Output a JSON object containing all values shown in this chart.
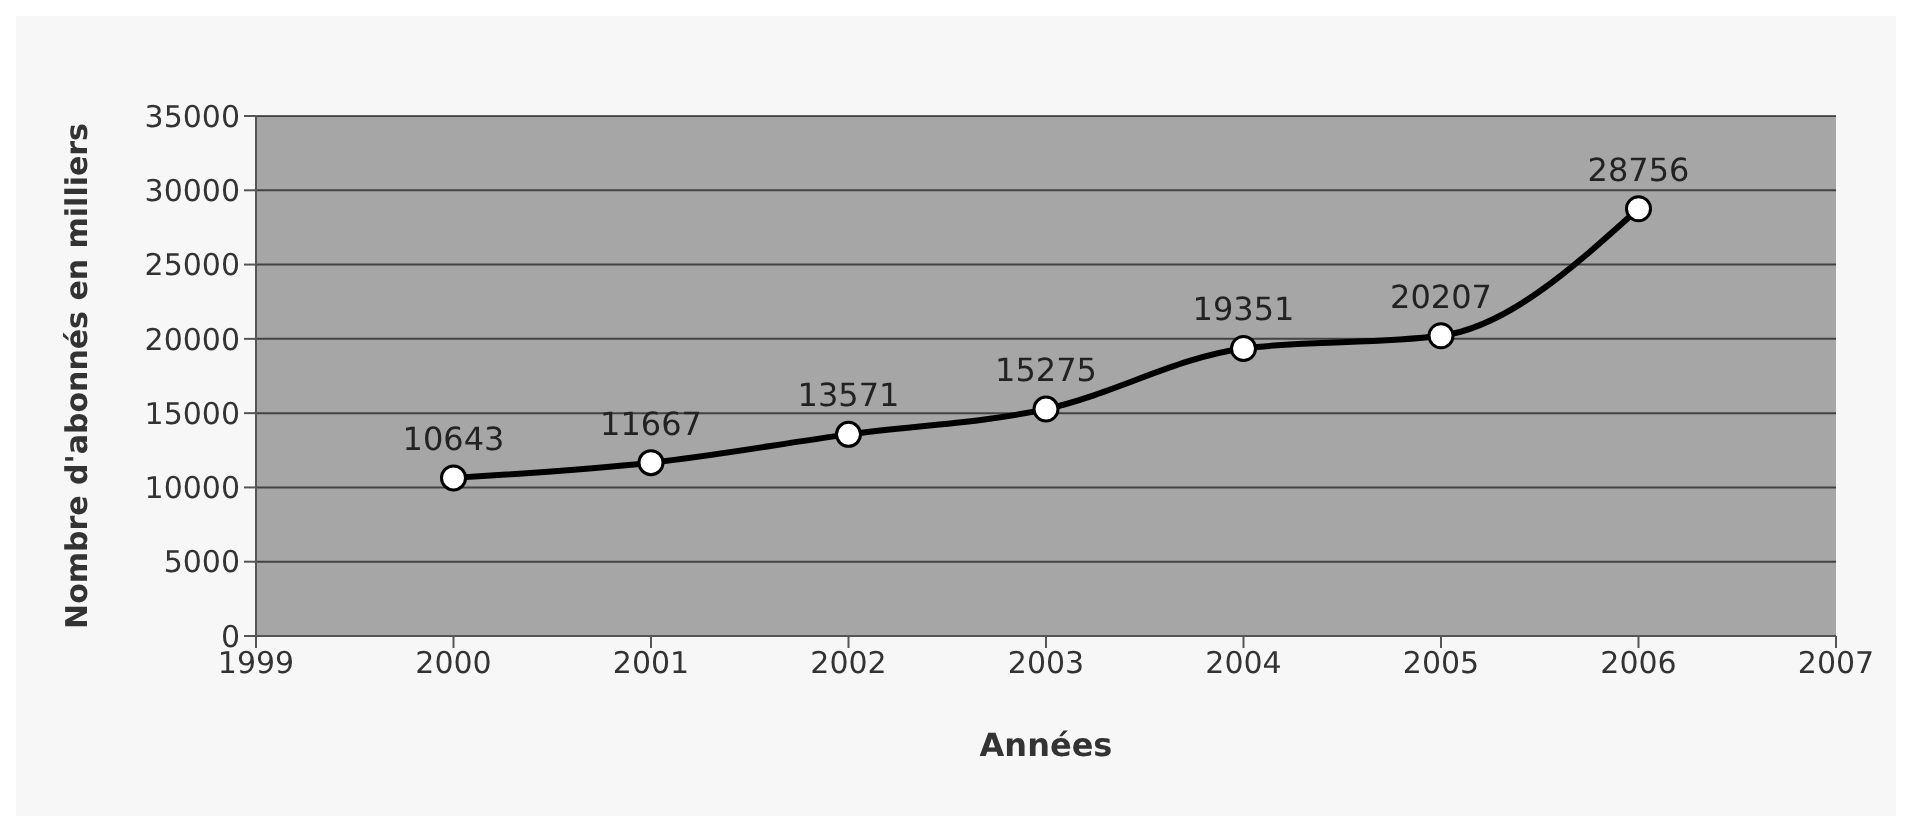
{
  "chart_data": {
    "type": "line",
    "xlabel": "Années",
    "ylabel": "Nombre d'abonnés en milliers",
    "x": [
      2000,
      2001,
      2002,
      2003,
      2004,
      2005,
      2006
    ],
    "series": [
      {
        "color": "#000000",
        "values": [
          10643,
          11667,
          13571,
          15275,
          19351,
          20207,
          28756
        ]
      }
    ],
    "xlim": [
      1999,
      2007
    ],
    "xticks": [
      1999,
      2000,
      2001,
      2002,
      2003,
      2004,
      2005,
      2006,
      2007
    ],
    "ylim": [
      0,
      35000
    ],
    "yticks": [
      0,
      5000,
      10000,
      15000,
      20000,
      25000,
      30000,
      35000
    ],
    "grid": "y",
    "data_labels": true,
    "marker": "circle",
    "line_style": "solid",
    "legend": false
  }
}
